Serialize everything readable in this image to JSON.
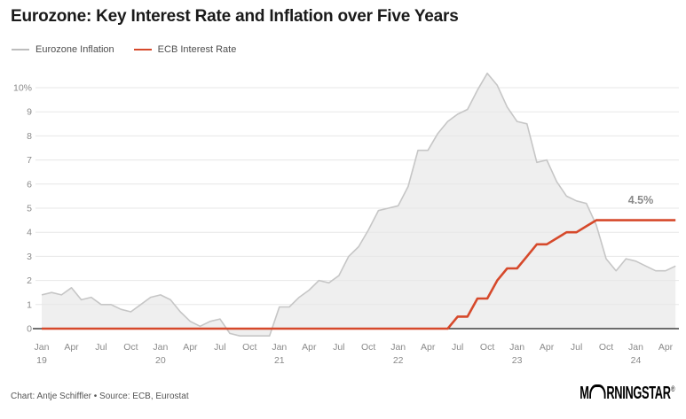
{
  "title": "Eurozone: Key Interest Rate and Inflation over Five Years",
  "legend": [
    {
      "label": "Eurozone Inflation",
      "color": "#bdbdbd"
    },
    {
      "label": "ECB Interest Rate",
      "color": "#d6492b"
    }
  ],
  "annotation": {
    "text": "4.5%",
    "color": "#e01e30"
  },
  "footer": {
    "credit": "Chart: Antje Schiffler • Source: ECB, Eurostat"
  },
  "logo": {
    "m": "M",
    "rest": "RNINGSTAR",
    "registered": "®"
  },
  "chart_data": {
    "type": "line",
    "title": "Eurozone: Key Interest Rate and Inflation over Five Years",
    "x_start": "Jan 2019",
    "x_end": "May 2024",
    "x_frequency": "monthly",
    "grid": true,
    "legend_position": "top-left",
    "ylim": [
      -0.5,
      10.8
    ],
    "y_tick_labels": [
      "0",
      "1",
      "2",
      "3",
      "4",
      "5",
      "6",
      "7",
      "8",
      "9",
      "10%"
    ],
    "x_ticks": [
      {
        "m": "Jan",
        "y": "19"
      },
      {
        "m": "Apr"
      },
      {
        "m": "Jul"
      },
      {
        "m": "Oct"
      },
      {
        "m": "Jan",
        "y": "20"
      },
      {
        "m": "Apr"
      },
      {
        "m": "Jul"
      },
      {
        "m": "Oct"
      },
      {
        "m": "Jan",
        "y": "21"
      },
      {
        "m": "Apr"
      },
      {
        "m": "Jul"
      },
      {
        "m": "Oct"
      },
      {
        "m": "Jan",
        "y": "22"
      },
      {
        "m": "Apr"
      },
      {
        "m": "Jul"
      },
      {
        "m": "Oct"
      },
      {
        "m": "Jan",
        "y": "23"
      },
      {
        "m": "Apr"
      },
      {
        "m": "Jul"
      },
      {
        "m": "Oct"
      },
      {
        "m": "Jan",
        "y": "24"
      },
      {
        "m": "Apr"
      }
    ],
    "series": [
      {
        "name": "Eurozone Inflation",
        "style": "area",
        "color": "#c6c6c6",
        "fill": "#efefef",
        "values": [
          1.4,
          1.5,
          1.4,
          1.7,
          1.2,
          1.3,
          1.0,
          1.0,
          0.8,
          0.7,
          1.0,
          1.3,
          1.4,
          1.2,
          0.7,
          0.3,
          0.1,
          0.3,
          0.4,
          -0.2,
          -0.3,
          -0.3,
          -0.3,
          -0.3,
          0.9,
          0.9,
          1.3,
          1.6,
          2.0,
          1.9,
          2.2,
          3.0,
          3.4,
          4.1,
          4.9,
          5.0,
          5.1,
          5.9,
          7.4,
          7.4,
          8.1,
          8.6,
          8.9,
          9.1,
          9.9,
          10.6,
          10.1,
          9.2,
          8.6,
          8.5,
          6.9,
          7.0,
          6.1,
          5.5,
          5.3,
          5.2,
          4.3,
          2.9,
          2.4,
          2.9,
          2.8,
          2.6,
          2.4,
          2.4,
          2.6
        ]
      },
      {
        "name": "ECB Interest Rate",
        "style": "line",
        "color": "#d6492b",
        "values": [
          0,
          0,
          0,
          0,
          0,
          0,
          0,
          0,
          0,
          0,
          0,
          0,
          0,
          0,
          0,
          0,
          0,
          0,
          0,
          0,
          0,
          0,
          0,
          0,
          0,
          0,
          0,
          0,
          0,
          0,
          0,
          0,
          0,
          0,
          0,
          0,
          0,
          0,
          0,
          0,
          0,
          0,
          0.5,
          0.5,
          1.25,
          1.25,
          2.0,
          2.5,
          2.5,
          3.0,
          3.5,
          3.5,
          3.75,
          4.0,
          4.0,
          4.25,
          4.5,
          4.5,
          4.5,
          4.5,
          4.5,
          4.5,
          4.5,
          4.5,
          4.5
        ]
      }
    ]
  }
}
